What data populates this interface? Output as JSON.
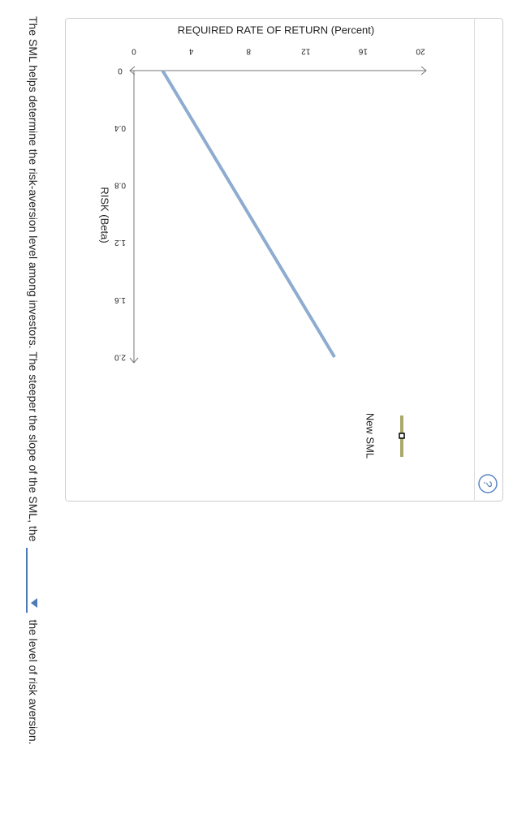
{
  "chart_data": {
    "type": "line",
    "x_label": "RISK (Beta)",
    "y_label": "REQUIRED RATE OF RETURN (Percent)",
    "x": [
      0,
      2
    ],
    "series": [
      {
        "name": "New SML",
        "color": "#8eabd0",
        "values": [
          2,
          14
        ]
      }
    ],
    "legend_color": "#a9a96c",
    "xlim": [
      0,
      2
    ],
    "xticks": [
      0,
      0.4,
      0.8,
      1.2,
      1.6,
      {
        "value": 2,
        "label": "2.0"
      }
    ],
    "ylim": [
      0,
      20
    ],
    "yticks": [
      0,
      4,
      8,
      12,
      16,
      20
    ]
  },
  "help": "?",
  "question": {
    "before": "The SML helps determine the risk-aversion level among investors. The steeper the slope of the SML, the",
    "after": "the level of risk aversion."
  }
}
